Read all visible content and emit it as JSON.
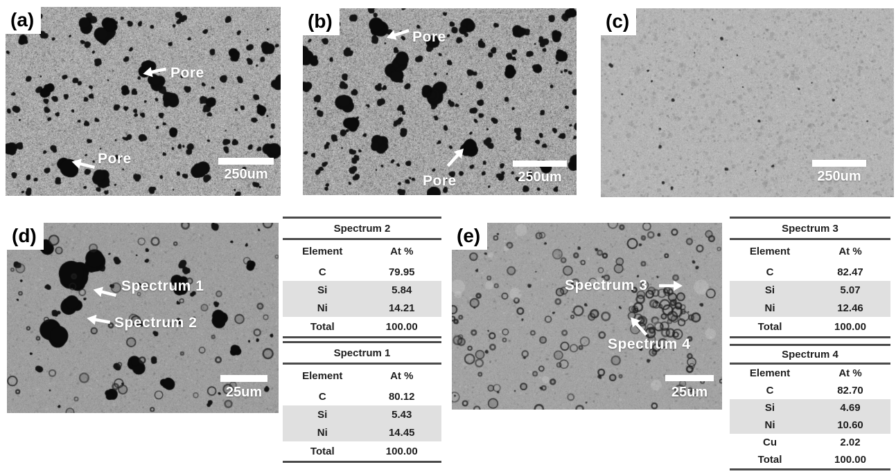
{
  "panels": [
    {
      "id": "a",
      "label": "(a)",
      "scalebar_text": "250um",
      "annotations": [
        {
          "text": "Pore"
        },
        {
          "text": "Pore"
        }
      ]
    },
    {
      "id": "b",
      "label": "(b)",
      "scalebar_text": "250um",
      "annotations": [
        {
          "text": "Pore"
        },
        {
          "text": "Pore"
        }
      ]
    },
    {
      "id": "c",
      "label": "(c)",
      "scalebar_text": "250um",
      "annotations": []
    },
    {
      "id": "d",
      "label": "(d)",
      "scalebar_text": "25um",
      "annotations": [
        {
          "text": "Spectrum 1"
        },
        {
          "text": "Spectrum 2"
        }
      ]
    },
    {
      "id": "e",
      "label": "(e)",
      "scalebar_text": "25um",
      "annotations": [
        {
          "text": "Spectrum 3"
        },
        {
          "text": "Spectrum 4"
        }
      ]
    }
  ],
  "tables": [
    {
      "title": "Spectrum 2",
      "columns": [
        "Element",
        "At %"
      ],
      "rows": [
        [
          "C",
          "79.95"
        ],
        [
          "Si",
          "5.84"
        ],
        [
          "Ni",
          "14.21"
        ],
        [
          "Total",
          "100.00"
        ]
      ]
    },
    {
      "title": "Spectrum 1",
      "columns": [
        "Element",
        "At %"
      ],
      "rows": [
        [
          "C",
          "80.12"
        ],
        [
          "Si",
          "5.43"
        ],
        [
          "Ni",
          "14.45"
        ],
        [
          "Total",
          "100.00"
        ]
      ]
    },
    {
      "title": "Spectrum 3",
      "columns": [
        "Element",
        "At %"
      ],
      "rows": [
        [
          "C",
          "82.47"
        ],
        [
          "Si",
          "5.07"
        ],
        [
          "Ni",
          "12.46"
        ],
        [
          "Total",
          "100.00"
        ]
      ]
    },
    {
      "title": "Spectrum 4",
      "columns": [
        "Element",
        "At %"
      ],
      "rows": [
        [
          "C",
          "82.70"
        ],
        [
          "Si",
          "4.69"
        ],
        [
          "Ni",
          "10.60"
        ],
        [
          "Cu",
          "2.02"
        ],
        [
          "Total",
          "100.00"
        ]
      ]
    }
  ],
  "colors": {
    "shaded_row": "#e0e0e0",
    "table_rule": "#4a4a4a",
    "annotation_text": "#ffffff",
    "scalebar": "#ffffff",
    "pore": "#0d0d0d"
  },
  "textures": {
    "a": {
      "seed": 11,
      "base": 168,
      "noise": 26,
      "clumpsDark": 1500,
      "clumpsLight": 500,
      "smallPores": 150,
      "largePores": 14,
      "features": [
        [
          205,
          88,
          10
        ],
        [
          88,
          230,
          13
        ],
        [
          150,
          28,
          10
        ],
        [
          60,
          120,
          8
        ],
        [
          330,
          70,
          8
        ],
        [
          240,
          180,
          7
        ],
        [
          370,
          150,
          6
        ]
      ]
    },
    "b": {
      "seed": 22,
      "base": 166,
      "noise": 27,
      "clumpsDark": 1700,
      "clumpsLight": 500,
      "smallPores": 170,
      "largePores": 18,
      "features": [
        [
          108,
          27,
          12
        ],
        [
          240,
          202,
          10
        ],
        [
          300,
          90,
          8
        ],
        [
          70,
          170,
          9
        ],
        [
          180,
          120,
          7
        ],
        [
          350,
          230,
          8
        ]
      ]
    },
    "c": {
      "seed": 33,
      "base": 181,
      "noise": 10,
      "clumpsDark": 900,
      "clumpsLight": 700,
      "spots": 520,
      "darkSpecks": 26
    },
    "d": {
      "seed": 44,
      "base": 158,
      "noise": 9,
      "clumpsDark": 500,
      "clumpsLight": 300,
      "smallPores": 42,
      "rings": 60,
      "features": [
        [
          100,
          80,
          22
        ],
        [
          130,
          55,
          15
        ],
        [
          72,
          165,
          20
        ],
        [
          95,
          120,
          12
        ],
        [
          250,
          90,
          12
        ],
        [
          305,
          140,
          10
        ],
        [
          185,
          205,
          10
        ],
        [
          230,
          235,
          9
        ],
        [
          55,
          38,
          10
        ],
        [
          350,
          60,
          7
        ],
        [
          330,
          185,
          7
        ],
        [
          150,
          250,
          8
        ]
      ]
    },
    "e": {
      "seed": 55,
      "base": 163,
      "noise": 8,
      "clumpsDark": 520,
      "clumpsLight": 320,
      "rings": 125,
      "cluster": [
        300,
        135,
        48,
        38,
        45
      ],
      "lightPatches": 14,
      "darkSpecks": 40
    }
  }
}
